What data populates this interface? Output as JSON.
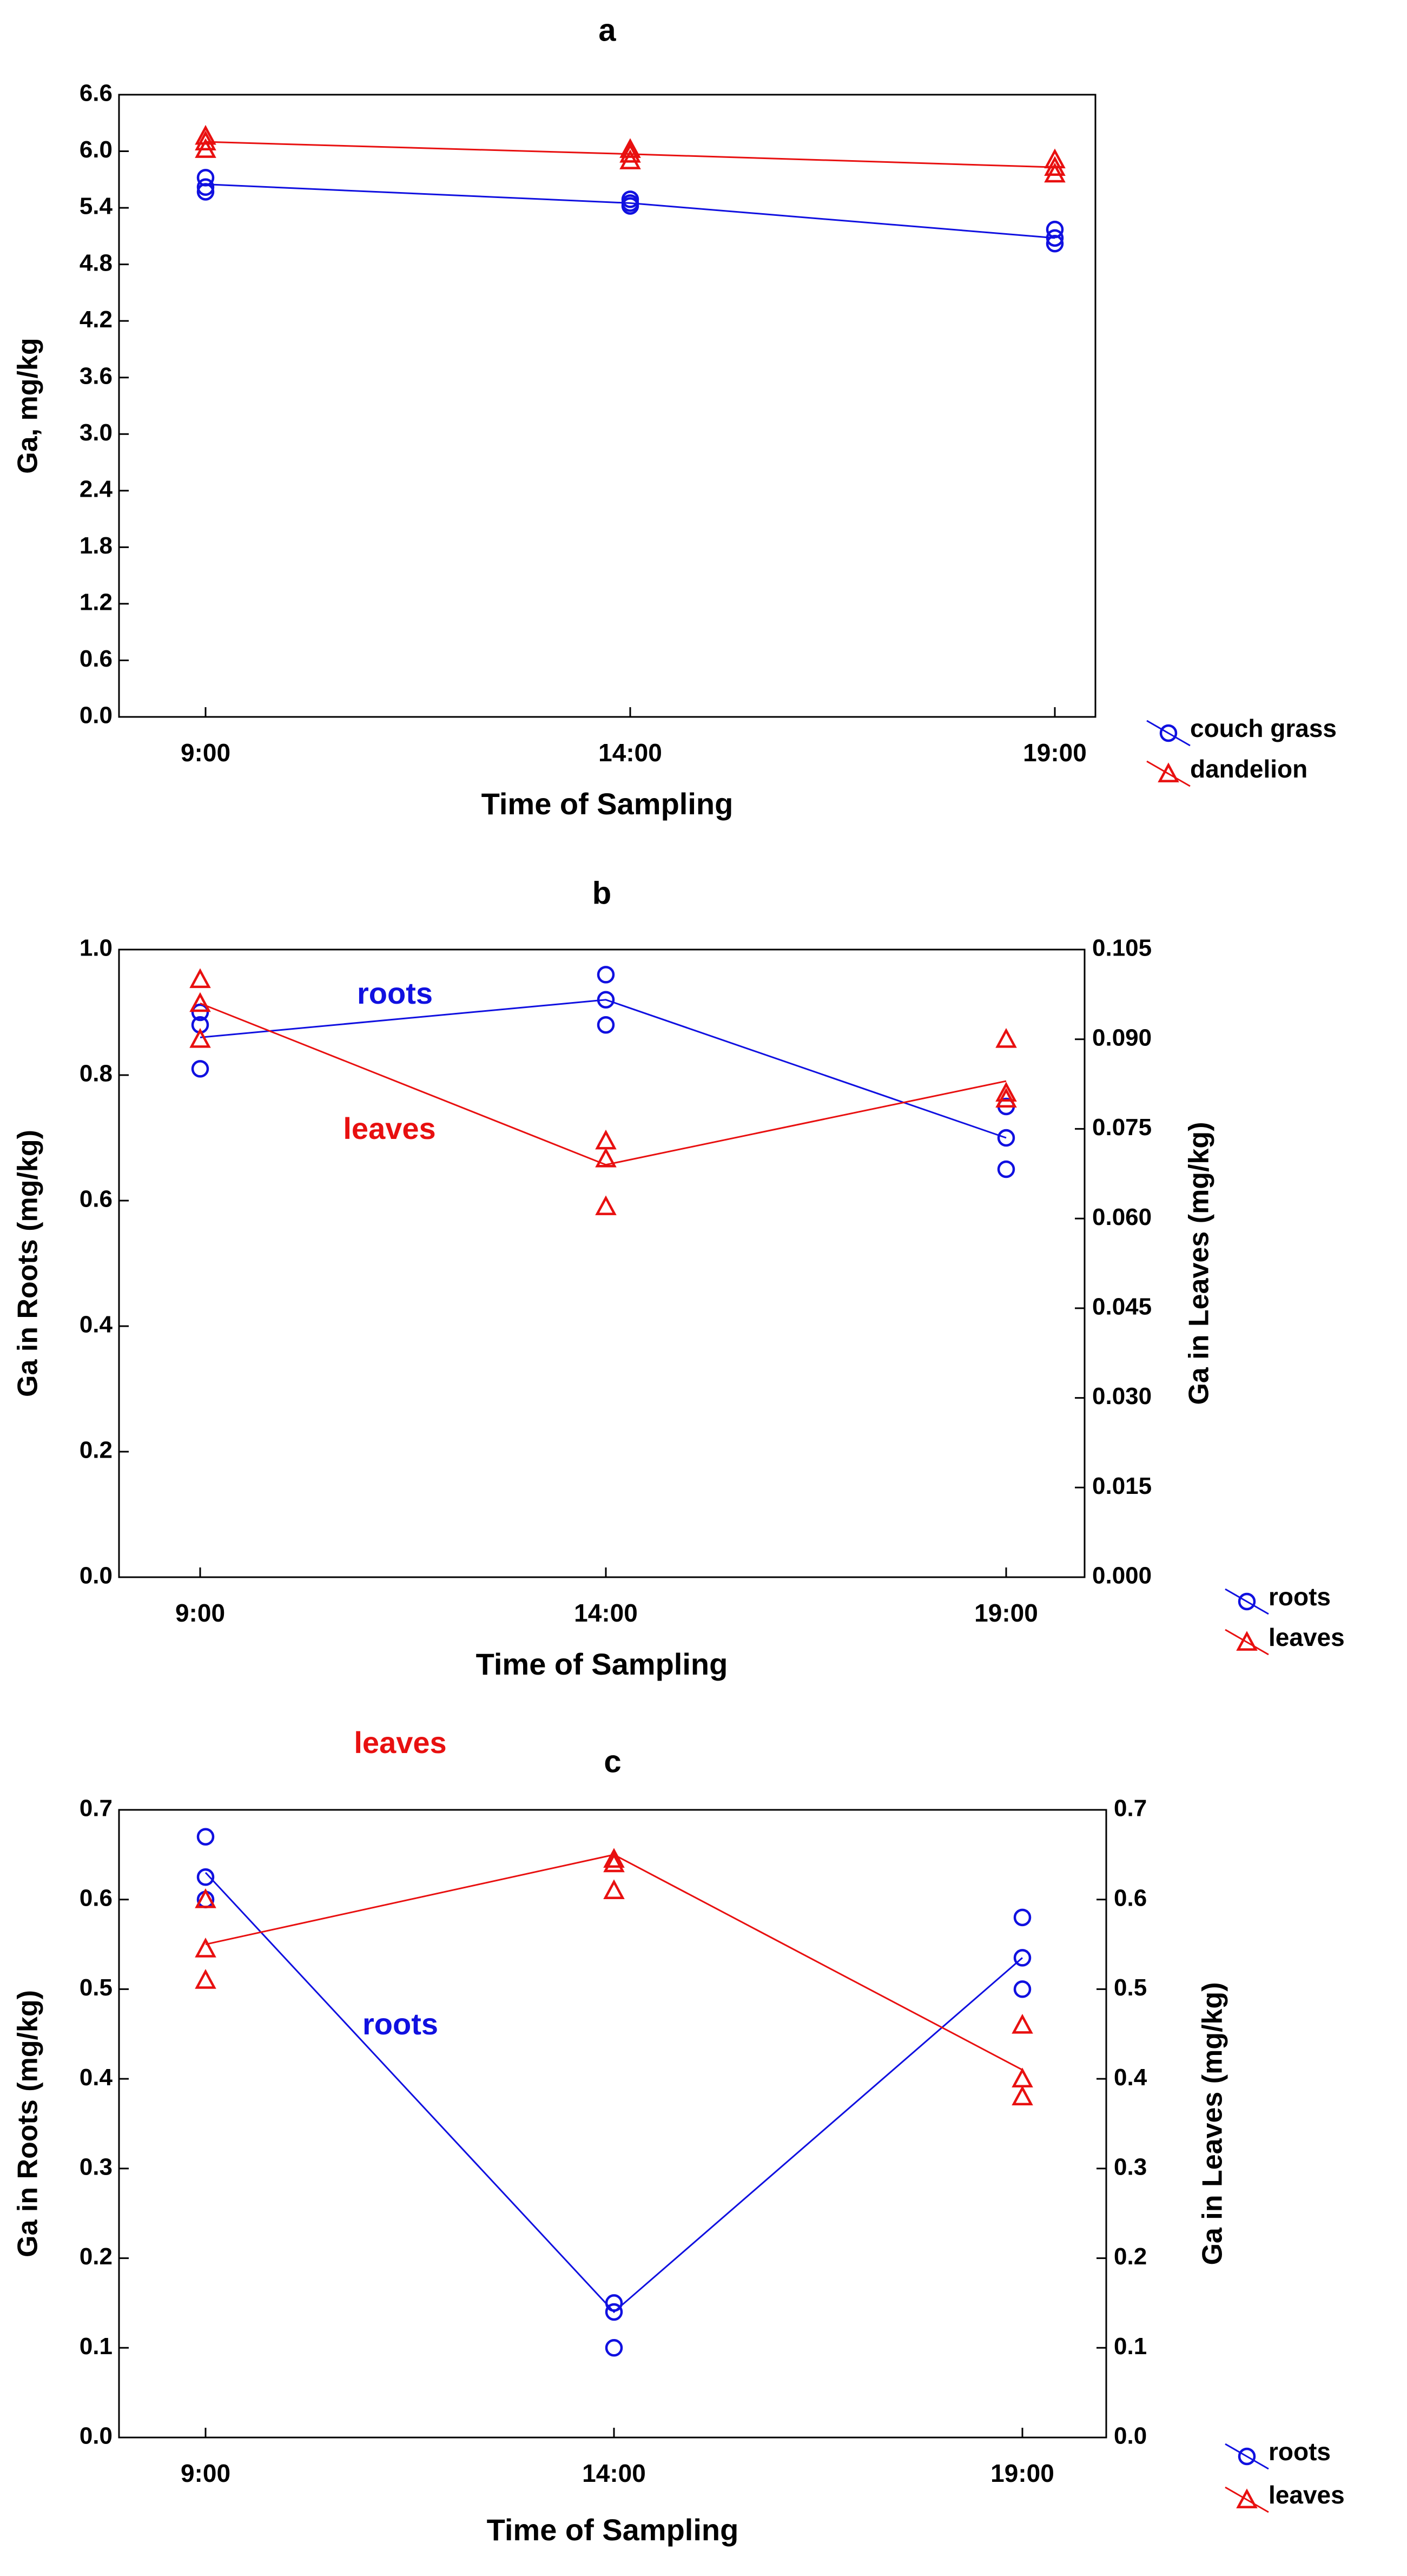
{
  "colors": {
    "blue": "#1010e0",
    "red": "#e81010",
    "axis": "#000000"
  },
  "chart_data": [
    {
      "type": "scatter",
      "panel": "a",
      "title": "a",
      "xlabel": "Time of Sampling",
      "ylabel": "Ga, mg/kg",
      "categories": [
        "9:00",
        "14:00",
        "19:00"
      ],
      "ylim": [
        0,
        6.6
      ],
      "yticks": [
        "0.0",
        "0.6",
        "1.2",
        "1.8",
        "2.4",
        "3.0",
        "3.6",
        "4.2",
        "4.8",
        "5.4",
        "6.0",
        "6.6"
      ],
      "legend_position": "bottom-right",
      "series": [
        {
          "name": "couch grass",
          "axis": "left",
          "marker": "circle",
          "color": "#1010e0",
          "line": [
            5.65,
            5.45,
            5.08
          ],
          "points": [
            [
              5.57,
              5.62,
              5.72
            ],
            [
              5.42,
              5.45,
              5.49
            ],
            [
              5.02,
              5.08,
              5.17
            ]
          ]
        },
        {
          "name": "dandelion",
          "axis": "left",
          "marker": "triangle",
          "color": "#e81010",
          "line": [
            6.1,
            5.97,
            5.83
          ],
          "points": [
            [
              6.02,
              6.1,
              6.16
            ],
            [
              5.9,
              5.97,
              6.02
            ],
            [
              5.76,
              5.83,
              5.91
            ]
          ]
        }
      ]
    },
    {
      "type": "scatter",
      "panel": "b",
      "title": "b",
      "xlabel": "Time of Sampling",
      "ylabel": "Ga in Roots (mg/kg)",
      "y2label": "Ga in Leaves (mg/kg)",
      "categories": [
        "9:00",
        "14:00",
        "19:00"
      ],
      "ylim": [
        0,
        1.0
      ],
      "y2lim": [
        0,
        0.105
      ],
      "yticks": [
        "0.0",
        "0.2",
        "0.4",
        "0.6",
        "0.8",
        "1.0"
      ],
      "y2ticks": [
        "0.000",
        "0.015",
        "0.030",
        "0.045",
        "0.060",
        "0.075",
        "0.090",
        "0.105"
      ],
      "legend_position": "bottom-right",
      "annotations": [
        {
          "text": "roots",
          "color": "#1010e0"
        },
        {
          "text": "leaves",
          "color": "#e81010"
        }
      ],
      "series": [
        {
          "name": "roots",
          "axis": "left",
          "marker": "circle",
          "color": "#1010e0",
          "line": [
            0.86,
            0.92,
            0.7
          ],
          "points": [
            [
              0.81,
              0.88,
              0.9
            ],
            [
              0.88,
              0.92,
              0.96
            ],
            [
              0.65,
              0.7,
              0.75
            ]
          ]
        },
        {
          "name": "leaves",
          "axis": "right",
          "marker": "triangle",
          "color": "#e81010",
          "line": [
            0.096,
            0.069,
            0.083
          ],
          "points": [
            [
              0.09,
              0.096,
              0.1
            ],
            [
              0.062,
              0.07,
              0.073
            ],
            [
              0.08,
              0.081,
              0.09
            ]
          ]
        }
      ]
    },
    {
      "type": "scatter",
      "panel": "c",
      "title": "c",
      "xlabel": "Time of Sampling",
      "ylabel": "Ga in Roots (mg/kg)",
      "y2label": "Ga in Leaves (mg/kg)",
      "categories": [
        "9:00",
        "14:00",
        "19:00"
      ],
      "ylim": [
        0,
        0.7
      ],
      "y2lim": [
        0,
        0.7
      ],
      "yticks": [
        "0.0",
        "0.1",
        "0.2",
        "0.3",
        "0.4",
        "0.5",
        "0.6",
        "0.7"
      ],
      "y2ticks": [
        "0.0",
        "0.1",
        "0.2",
        "0.3",
        "0.4",
        "0.5",
        "0.6",
        "0.7"
      ],
      "legend_position": "bottom-right",
      "annotations": [
        {
          "text": "leaves",
          "color": "#e81010"
        },
        {
          "text": "roots",
          "color": "#1010e0"
        }
      ],
      "series": [
        {
          "name": "roots",
          "axis": "left",
          "marker": "circle",
          "color": "#1010e0",
          "line": [
            0.63,
            0.14,
            0.535
          ],
          "points": [
            [
              0.6,
              0.625,
              0.67
            ],
            [
              0.1,
              0.14,
              0.15
            ],
            [
              0.5,
              0.535,
              0.58
            ]
          ]
        },
        {
          "name": "leaves",
          "axis": "right",
          "marker": "triangle",
          "color": "#e81010",
          "line": [
            0.55,
            0.65,
            0.41
          ],
          "points": [
            [
              0.51,
              0.545,
              0.6
            ],
            [
              0.61,
              0.64,
              0.645
            ],
            [
              0.38,
              0.4,
              0.46
            ]
          ]
        }
      ]
    }
  ]
}
